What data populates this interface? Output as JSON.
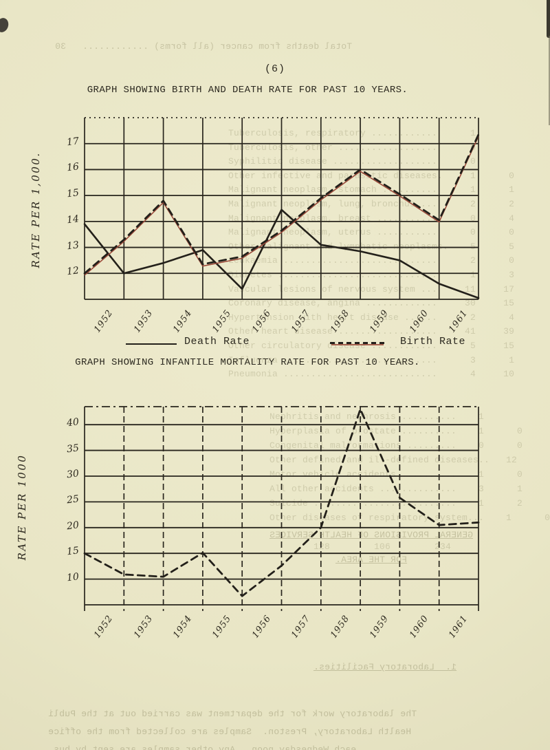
{
  "page": {
    "number": "(6)"
  },
  "colors": {
    "paper": "#e9e6c6",
    "ink": "#28251d",
    "accent_red": "#9b4a3a",
    "ghost": "#8f8b66"
  },
  "chart_data": [
    {
      "type": "line",
      "title": "GRAPH SHOWING BIRTH AND DEATH RATE FOR PAST 10 YEARS.",
      "ylabel": "RATE PER 1,000.",
      "xlabel": "",
      "x_categories": [
        "1952",
        "1953",
        "1954",
        "1955",
        "1956",
        "1957",
        "1958",
        "1959",
        "1960",
        "1961"
      ],
      "y_ticks": [
        12,
        13,
        14,
        15,
        16,
        17
      ],
      "ylim": [
        11,
        18
      ],
      "grid": true,
      "legend_position": "below",
      "series": [
        {
          "name": "Death Rate",
          "style": "solid",
          "color": "#23201a",
          "edge_start": 13.9,
          "values": [
            12.0,
            12.4,
            12.9,
            11.4,
            14.45,
            13.1,
            12.85,
            12.5,
            11.6,
            11.05
          ]
        },
        {
          "name": "Birth Rate",
          "style": "dashed",
          "color": "#23201a",
          "underlay_color": "#9b4a3a",
          "edge_start": 12.0,
          "values": [
            13.3,
            14.8,
            12.35,
            12.65,
            13.65,
            14.9,
            16.0,
            15.05,
            14.05,
            17.35
          ]
        }
      ]
    },
    {
      "type": "line",
      "title": "GRAPH SHOWING INFANTILE MORTALITY RATE FOR PAST 10 YEARS.",
      "ylabel": "RATE PER 1000",
      "xlabel": "",
      "x_categories": [
        "1952",
        "1953",
        "1954",
        "1955",
        "1956",
        "1957",
        "1958",
        "1959",
        "1960",
        "1961"
      ],
      "y_ticks": [
        10,
        15,
        20,
        25,
        30,
        35,
        40
      ],
      "ylim": [
        5,
        43.5
      ],
      "grid": true,
      "legend_position": "none",
      "series": [
        {
          "name": "Infantile Mortality Rate",
          "style": "dashed",
          "color": "#23201a",
          "edge_start": 15.0,
          "values": [
            10.9,
            10.45,
            15.1,
            6.7,
            12.6,
            20.0,
            43.0,
            25.8,
            20.5,
            21.0
          ]
        }
      ]
    }
  ],
  "ghost_text": {
    "top_line": "Total deaths from cancer (all forms) ............   30",
    "chart1": [
      "Tuberculosis, respiratory ............      1",
      "Tuberculosis, other ..................      0",
      "Syphilitic disease ...................      0",
      "Other infective and parasitic diseases.     1      0",
      "Malignant neoplasm, stomach ..........      1      1",
      "Malignant neoplasm, lung, bronchus ...      2      2",
      "Malignant neoplasm, breast ...........      0      4",
      "Malignant neoplasm, uterus ...........      0      0",
      "Other malignant and lymphatic neoplasms.    5      5",
      "Leukaemia ............................      2      0",
      "Diabetes .............................      1      3",
      "Vascular lesions of nervous system ...     11     17",
      "Coronary disease, angina .............     30     15",
      "Hypertension with heart disease ......      2      4",
      "Other heart disease ..................     41     39",
      "Other circulatory disease ............      5     15",
      "Influenza ............................      3      1",
      "Pneumonia ............................      4     10"
    ],
    "chart2": [
      "Nephritis and nephrosis ..........    1",
      "Hyperplasia of prostate ..........    1      0      1",
      "Congenital malformations .........    0      0",
      "Other defined and ill-defined diseases..   12      8     20",
      "Motor vehicle accidents ..........    1      0",
      "All other accidents ..............    3      1      4",
      "Suicide ..........................    1      2      3",
      "Other diseases of respiratory system...    1      0      1",
      "",
      "        128        106        234"
    ],
    "headings": [
      "GENERAL PROVISIONS OF HEALTH SERVICES",
      "FOR THE AREA."
    ],
    "lab_heading": "1.  Laboratory Facilities.",
    "bottom_paragraph": [
      "The laboratory work for the department was carried out at the Publi",
      "Health Laboratory, Preston.  Samples are collected from the office",
      "each Wednesday noon.  Any other samples are sent by bus."
    ]
  }
}
